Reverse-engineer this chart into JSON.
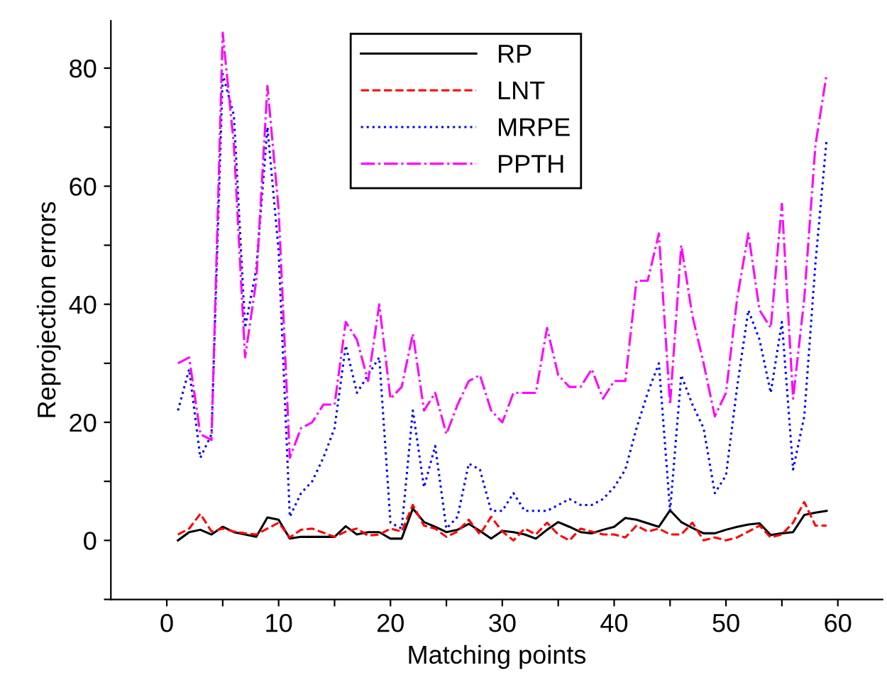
{
  "chart_data": {
    "type": "line",
    "xlabel": "Matching points",
    "ylabel": "Reprojection errors",
    "x": [
      1,
      2,
      3,
      4,
      5,
      6,
      7,
      8,
      9,
      10,
      11,
      12,
      13,
      14,
      15,
      16,
      17,
      18,
      19,
      20,
      21,
      22,
      23,
      24,
      25,
      26,
      27,
      28,
      29,
      30,
      31,
      32,
      33,
      34,
      35,
      36,
      37,
      38,
      39,
      40,
      41,
      42,
      43,
      44,
      45,
      46,
      47,
      48,
      49,
      50,
      51,
      52,
      53,
      54,
      55,
      56,
      57,
      58,
      59
    ],
    "xlim": [
      -5,
      64
    ],
    "xticks": [
      0,
      {
        "value": 5,
        "label": null
      },
      10,
      {
        "value": 15,
        "label": null
      },
      20,
      {
        "value": 25,
        "label": null
      },
      30,
      {
        "value": 35,
        "label": null
      },
      40,
      {
        "value": 45,
        "label": null
      },
      50,
      {
        "value": 55,
        "label": null
      },
      60
    ],
    "ylim": [
      -10,
      88
    ],
    "yticks": [
      {
        "value": -10,
        "label": null
      },
      0,
      {
        "value": 10,
        "label": null
      },
      20,
      {
        "value": 30,
        "label": null
      },
      40,
      {
        "value": 50,
        "label": null
      },
      60,
      {
        "value": 70,
        "label": null
      },
      80
    ],
    "grid": false,
    "legend": "top",
    "marker": "none",
    "series": [
      {
        "name": "RP",
        "color": "#000000",
        "line_style": "solid",
        "values": [
          0,
          1.4,
          1.8,
          1,
          2.3,
          1.4,
          1,
          0.6,
          3.9,
          3.5,
          0.3,
          0.6,
          0.6,
          0.6,
          0.6,
          2.4,
          1,
          1.4,
          1.4,
          0.3,
          0.3,
          5.4,
          3.1,
          2.3,
          1.4,
          1.8,
          2.8,
          1.6,
          0.3,
          1.6,
          1.4,
          1,
          0.3,
          1.8,
          3.1,
          2.3,
          1.4,
          1.2,
          1.8,
          2.3,
          3.8,
          3.5,
          2.9,
          2.3,
          5.1,
          3.1,
          2.1,
          1.2,
          1.2,
          1.8,
          2.3,
          2.7,
          2.9,
          0.9,
          1.2,
          1.4,
          4.3,
          4.7,
          5
        ]
      },
      {
        "name": "LNT",
        "color": "#ff0000",
        "line_style": "dashed",
        "values": [
          1,
          2,
          4.5,
          1.5,
          2,
          1.5,
          1.2,
          1,
          2,
          3,
          0.5,
          1.8,
          2,
          1.3,
          0.6,
          1.5,
          2,
          0.8,
          1,
          2,
          1.5,
          6,
          2.5,
          2,
          0.6,
          1.5,
          3.5,
          1,
          4,
          1.5,
          0,
          2,
          1,
          3,
          1,
          0,
          2,
          1.5,
          1,
          1,
          0.5,
          2.5,
          1.5,
          2,
          1,
          1,
          3,
          0,
          0.5,
          0,
          0.5,
          1.5,
          2.5,
          0.5,
          1,
          3,
          6.5,
          2.5,
          2.5
        ]
      },
      {
        "name": "MRPE",
        "color": "#0000ff",
        "line_style": "dotted",
        "values": [
          22,
          29,
          14,
          18,
          79,
          72,
          36,
          46,
          70,
          49,
          4,
          8,
          10,
          14,
          19,
          33,
          25,
          28,
          31,
          3,
          2,
          22,
          9,
          16,
          2,
          4,
          13,
          12,
          5,
          5,
          8,
          5,
          5,
          5,
          6,
          7,
          6,
          6,
          7,
          9,
          12,
          19,
          25,
          30,
          5,
          28,
          23,
          19,
          8,
          11,
          26,
          39,
          34,
          25,
          37,
          12,
          21,
          47,
          68
        ]
      },
      {
        "name": "PPTH",
        "color": "#ff00ff",
        "line_style": "dashdot",
        "values": [
          30,
          31,
          18,
          17,
          86,
          67,
          31,
          44,
          77,
          56,
          14,
          19,
          20,
          23,
          23,
          37,
          34,
          27,
          40,
          24,
          26,
          35,
          22,
          25,
          18,
          23,
          27,
          28,
          22,
          20,
          25,
          25,
          25,
          36,
          28,
          26,
          26,
          29,
          24,
          27,
          27,
          44,
          44,
          52,
          23,
          50,
          38,
          30,
          21,
          25,
          41,
          52,
          39,
          36,
          57,
          24,
          41,
          67,
          79
        ]
      }
    ]
  }
}
